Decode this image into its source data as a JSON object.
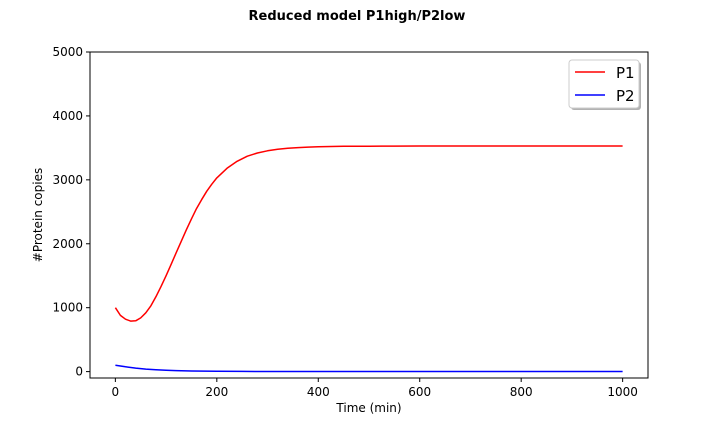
{
  "chart_data": {
    "type": "line",
    "title": "Reduced model P1high/P2low",
    "xlabel": "Time (min)",
    "ylabel": "#Protein copies",
    "xlim": [
      -50,
      1050
    ],
    "ylim": [
      -100,
      5000
    ],
    "xticks": [
      0,
      200,
      400,
      600,
      800,
      1000
    ],
    "yticks": [
      0,
      1000,
      2000,
      3000,
      4000,
      5000
    ],
    "grid": false,
    "legend": "top-right",
    "series": [
      {
        "name": "P1",
        "color": "#ff0000",
        "x": [
          0,
          10,
          20,
          30,
          40,
          50,
          60,
          70,
          80,
          90,
          100,
          110,
          120,
          130,
          140,
          150,
          160,
          170,
          180,
          190,
          200,
          220,
          240,
          260,
          280,
          300,
          320,
          340,
          360,
          380,
          400,
          450,
          500,
          550,
          600,
          700,
          800,
          900,
          1000
        ],
        "values": [
          1000,
          880,
          820,
          790,
          795,
          840,
          920,
          1030,
          1170,
          1330,
          1500,
          1680,
          1860,
          2040,
          2220,
          2390,
          2550,
          2690,
          2820,
          2930,
          3030,
          3180,
          3290,
          3370,
          3420,
          3455,
          3480,
          3495,
          3505,
          3512,
          3518,
          3524,
          3527,
          3528,
          3529,
          3529,
          3529,
          3529,
          3529
        ]
      },
      {
        "name": "P2",
        "color": "#0000ff",
        "x": [
          0,
          20,
          40,
          60,
          80,
          100,
          120,
          150,
          200,
          250,
          300,
          400,
          500,
          700,
          1000
        ],
        "values": [
          100,
          75,
          55,
          40,
          30,
          22,
          16,
          10,
          5,
          3,
          2,
          1,
          1,
          1,
          1
        ]
      }
    ]
  }
}
